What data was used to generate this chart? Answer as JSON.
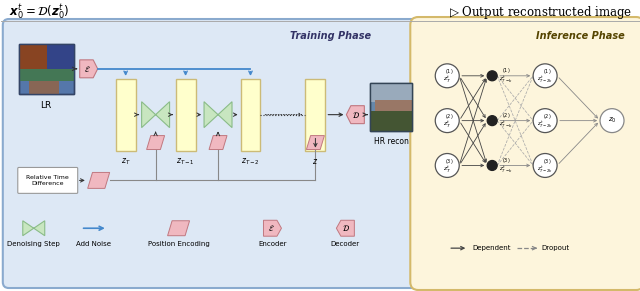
{
  "title_left": "$\\boldsymbol{x}_0^t = \\mathcal{D}(\\boldsymbol{z}_0^t)$",
  "title_right": "$\\triangleright$ Output reconstructed image",
  "training_phase_label": "Training Phase",
  "inference_phase_label": "Inference Phase",
  "training_bg": "#dde8f5",
  "inference_bg": "#fdf5dc",
  "train_edge": "#8aaace",
  "infer_edge": "#d4b96a",
  "rect_fc": "#ffffcc",
  "rect_ec": "#ccbb77",
  "bowtie_fc": "#c8e6c0",
  "bowtie_ec": "#8abc88",
  "enc_fc": "#f0b8c0",
  "enc_ec": "#c07880",
  "pos_fc": "#f0b8c0",
  "pos_ec": "#c07880",
  "blue_arrow": "#4488cc",
  "dark_arrow": "#333333",
  "gray_arrow": "#888888",
  "circle_ec": "#555555",
  "filled_circle_fc": "#222222",
  "z0_circle_ec": "#888888"
}
